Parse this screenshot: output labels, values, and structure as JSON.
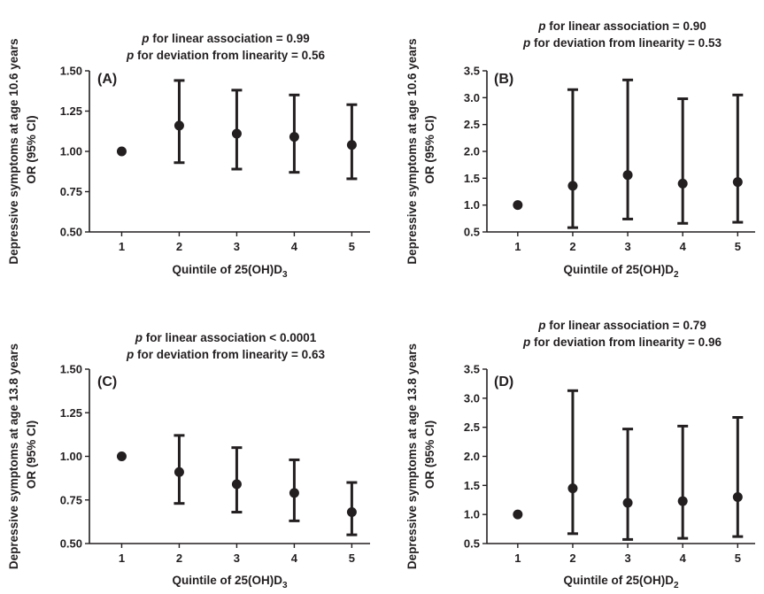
{
  "colors": {
    "ink": "#231f20",
    "background": "#ffffff"
  },
  "chart_data": [
    {
      "type": "scatter",
      "panel_label": "(A)",
      "annotations": [
        {
          "p": "p",
          "text": " for linear association = 0.99"
        },
        {
          "p": "p",
          "text": " for deviation from linearity = 0.56"
        }
      ],
      "xlabel": {
        "text": "Quintile of 25(OH)D",
        "sub": "3"
      },
      "ylabel": [
        "Depressive symptoms at age 10.6 years",
        "OR (95% CI)"
      ],
      "categories": [
        "1",
        "2",
        "3",
        "4",
        "5"
      ],
      "yticks": [
        "0.50",
        "0.75",
        "1.00",
        "1.25",
        "1.50"
      ],
      "ylim": [
        0.5,
        1.5
      ],
      "series": [
        {
          "values": [
            1.0,
            1.16,
            1.11,
            1.09,
            1.04
          ],
          "lower": [
            1.0,
            0.93,
            0.89,
            0.87,
            0.83
          ],
          "upper": [
            1.0,
            1.44,
            1.38,
            1.35,
            1.29
          ]
        }
      ]
    },
    {
      "type": "scatter",
      "panel_label": "(B)",
      "annotations": [
        {
          "p": "p",
          "text": " for linear association = 0.90"
        },
        {
          "p": "p",
          "text": " for deviation from linearity = 0.53"
        }
      ],
      "xlabel": {
        "text": "Quintile of 25(OH)D",
        "sub": "2"
      },
      "ylabel": [
        "Depressive symptoms at age 10.6 years",
        "OR (95% CI)"
      ],
      "categories": [
        "1",
        "2",
        "3",
        "4",
        "5"
      ],
      "yticks": [
        "0.5",
        "1.0",
        "1.5",
        "2.0",
        "2.5",
        "3.0",
        "3.5"
      ],
      "ylim": [
        0.5,
        3.5
      ],
      "series": [
        {
          "values": [
            1.0,
            1.36,
            1.56,
            1.4,
            1.43
          ],
          "lower": [
            1.0,
            0.58,
            0.74,
            0.66,
            0.68
          ],
          "upper": [
            1.0,
            3.15,
            3.33,
            2.98,
            3.05
          ]
        }
      ]
    },
    {
      "type": "scatter",
      "panel_label": "(C)",
      "annotations": [
        {
          "p": "p",
          "text": " for linear association < 0.0001"
        },
        {
          "p": "p",
          "text": " for deviation from linearity = 0.63"
        }
      ],
      "xlabel": {
        "text": "Quintile of 25(OH)D",
        "sub": "3"
      },
      "ylabel": [
        "Depressive symptoms at age 13.8 years",
        "OR (95% CI)"
      ],
      "categories": [
        "1",
        "2",
        "3",
        "4",
        "5"
      ],
      "yticks": [
        "0.50",
        "0.75",
        "1.00",
        "1.25",
        "1.50"
      ],
      "ylim": [
        0.5,
        1.5
      ],
      "series": [
        {
          "values": [
            1.0,
            0.91,
            0.84,
            0.79,
            0.68
          ],
          "lower": [
            1.0,
            0.73,
            0.68,
            0.63,
            0.55
          ],
          "upper": [
            1.0,
            1.12,
            1.05,
            0.98,
            0.85
          ]
        }
      ]
    },
    {
      "type": "scatter",
      "panel_label": "(D)",
      "annotations": [
        {
          "p": "p",
          "text": " for linear association = 0.79"
        },
        {
          "p": "p",
          "text": " for deviation from linearity = 0.96"
        }
      ],
      "xlabel": {
        "text": "Quintile of 25(OH)D",
        "sub": "2"
      },
      "ylabel": [
        "Depressive symptoms at age 13.8 years",
        "OR (95% CI)"
      ],
      "categories": [
        "1",
        "2",
        "3",
        "4",
        "5"
      ],
      "yticks": [
        "0.5",
        "1.0",
        "1.5",
        "2.0",
        "2.5",
        "3.0",
        "3.5"
      ],
      "ylim": [
        0.5,
        3.5
      ],
      "series": [
        {
          "values": [
            1.0,
            1.45,
            1.2,
            1.23,
            1.3
          ],
          "lower": [
            1.0,
            0.67,
            0.57,
            0.59,
            0.62
          ],
          "upper": [
            1.0,
            3.13,
            2.47,
            2.52,
            2.67
          ]
        }
      ]
    }
  ]
}
